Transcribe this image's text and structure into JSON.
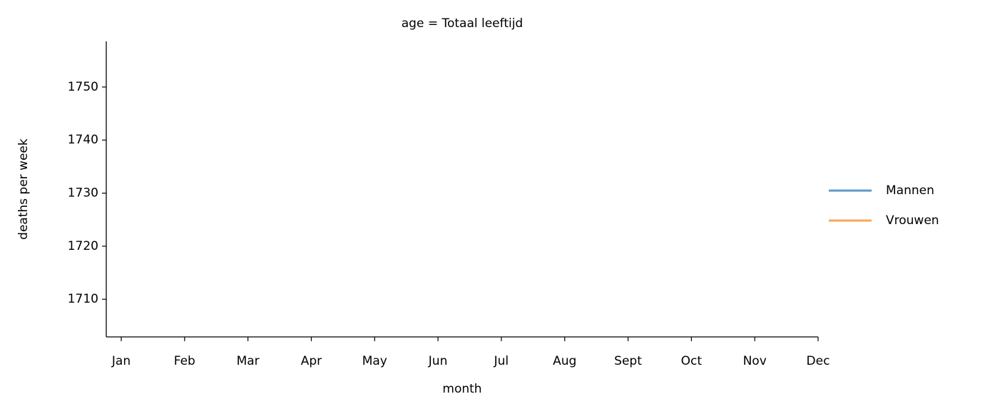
{
  "chart_data": {
    "type": "line",
    "title": "age = Totaal leeftijd",
    "xlabel": "month",
    "ylabel": "deaths per week",
    "categories": [
      "Jan",
      "Feb",
      "Mar",
      "Apr",
      "May",
      "Jun",
      "Jul",
      "Aug",
      "Sept",
      "Oct",
      "Nov",
      "Dec"
    ],
    "series": [
      {
        "name": "Mannen",
        "color": "#5f9ac9",
        "values": [
          null,
          null,
          null,
          null,
          null,
          null,
          null,
          null,
          null,
          null,
          null,
          null
        ]
      },
      {
        "name": "Vrouwen",
        "color": "#f9a65a",
        "values": [
          null,
          null,
          null,
          null,
          null,
          null,
          null,
          null,
          null,
          null,
          null,
          null
        ]
      }
    ],
    "ylim": [
      1702.9,
      1758.6
    ],
    "yticks": [
      1710,
      1720,
      1730,
      1740,
      1750
    ],
    "legend": "right"
  }
}
